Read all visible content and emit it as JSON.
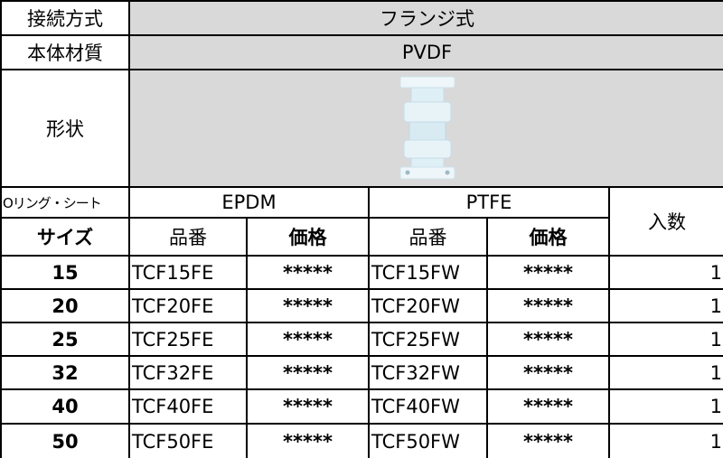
{
  "spec": [
    {
      "label": "接続方式",
      "value": "フランジ式"
    },
    {
      "label": "本体材質",
      "value": "PVDF"
    },
    {
      "label": "形状"
    }
  ],
  "table": {
    "oring_label": "Oリング・シート",
    "materials": [
      "EPDM",
      "PTFE"
    ],
    "quantity_label": "入数",
    "size_label": "サイズ",
    "part_no_label": "品番",
    "price_label": "価格",
    "rows": [
      [
        "15",
        "TCF15FE",
        "*****",
        "TCF15FW",
        "*****",
        "1"
      ],
      [
        "20",
        "TCF20FE",
        "*****",
        "TCF20FW",
        "*****",
        "1"
      ],
      [
        "25",
        "TCF25FE",
        "*****",
        "TCF25FW",
        "*****",
        "1"
      ],
      [
        "32",
        "TCF32FE",
        "*****",
        "TCF32FW",
        "*****",
        "1"
      ],
      [
        "40",
        "TCF40FE",
        "*****",
        "TCF40FW",
        "*****",
        "1"
      ],
      [
        "50",
        "TCF50FE",
        "*****",
        "TCF50FW",
        "*****",
        "1"
      ]
    ]
  }
}
